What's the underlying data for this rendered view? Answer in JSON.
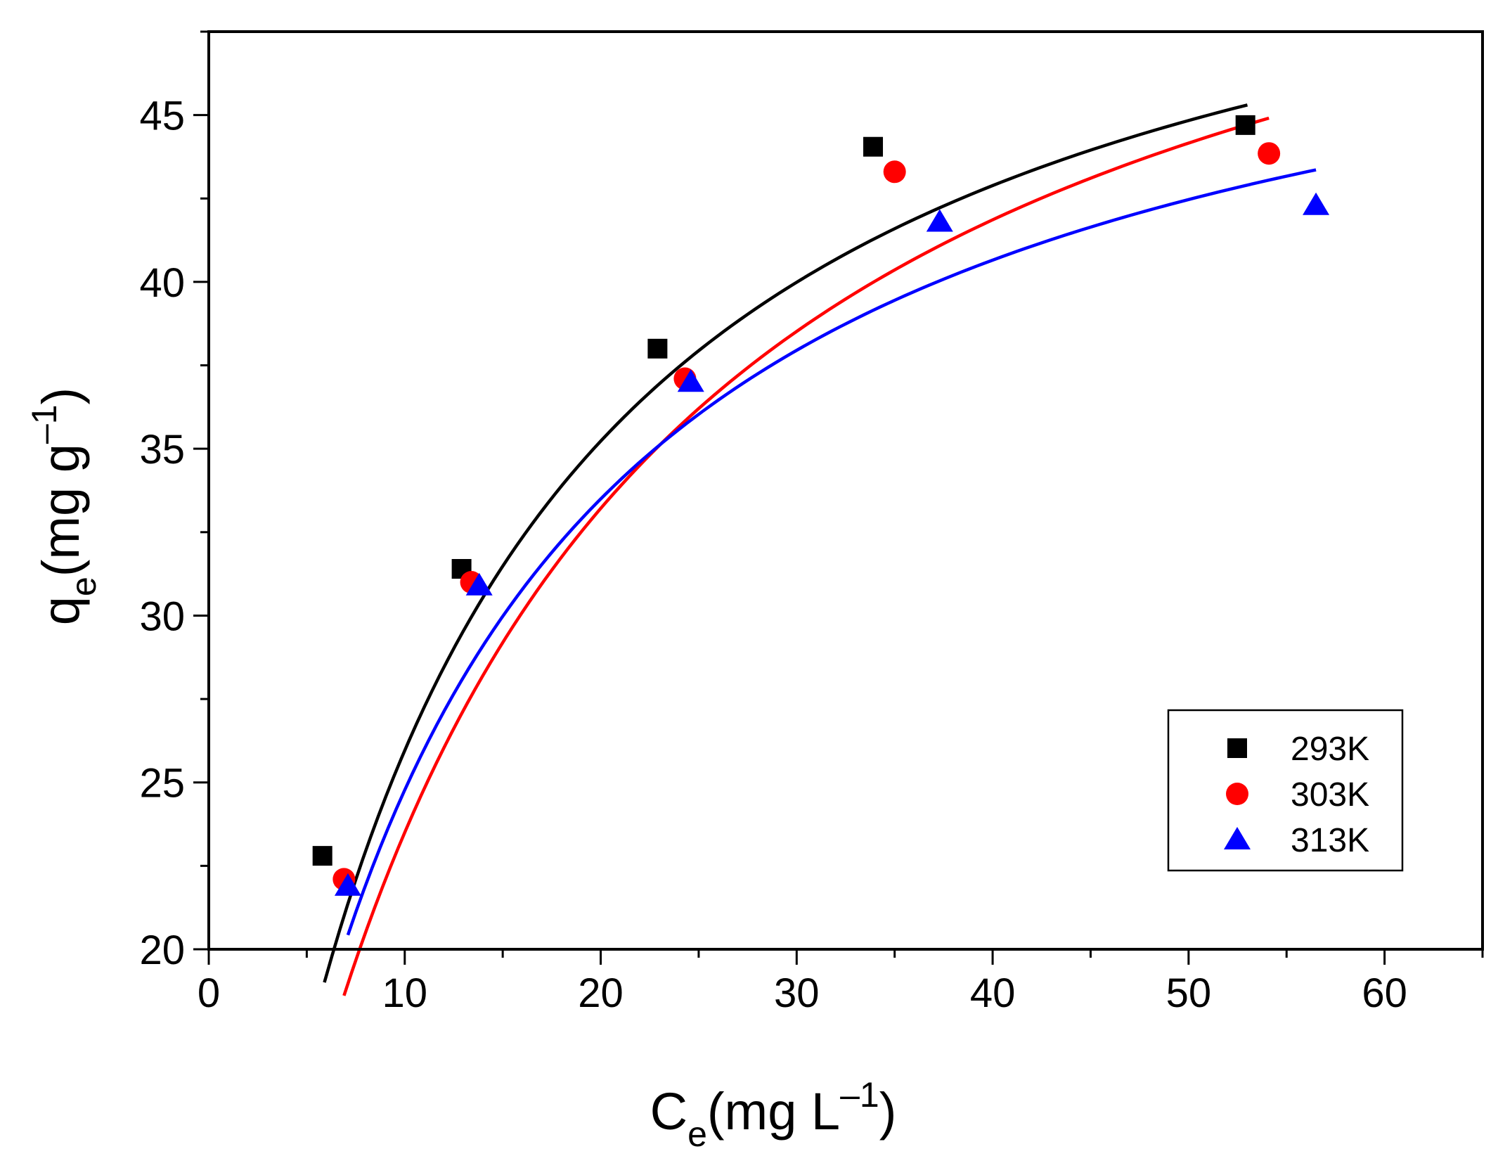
{
  "chart_data": {
    "type": "scatter",
    "title": "",
    "xlabel": {
      "main": "C",
      "sub": "e",
      "unit": "(mg L",
      "sup": "–1",
      "close": ")"
    },
    "ylabel": {
      "main": "q",
      "sub": "e",
      "unit": "(mg g",
      "sup": "–1",
      "close": ")"
    },
    "xlim": [
      0,
      65
    ],
    "ylim": [
      20,
      47.5
    ],
    "xticks": [
      0,
      10,
      20,
      30,
      40,
      50,
      60
    ],
    "xtick_labels": [
      "0",
      "10",
      "20",
      "30",
      "40",
      "50",
      "60"
    ],
    "yticks": [
      20,
      25,
      30,
      35,
      40,
      45
    ],
    "ytick_labels": [
      "20",
      "25",
      "30",
      "35",
      "40",
      "45"
    ],
    "grid": false,
    "legend_position": "bottom-right",
    "series": [
      {
        "name": "293K",
        "marker": "square",
        "color": "#000000",
        "points": [
          [
            5.8,
            22.8
          ],
          [
            12.9,
            31.4
          ],
          [
            22.9,
            38.0
          ],
          [
            33.9,
            44.05
          ],
          [
            52.9,
            44.7
          ]
        ],
        "fit": {
          "model": "langmuir",
          "qmax": 54.8,
          "KL": 0.09,
          "x_range": [
            5.9,
            53.0
          ]
        }
      },
      {
        "name": "303K",
        "marker": "circle",
        "color": "#ff0000",
        "points": [
          [
            6.9,
            22.1
          ],
          [
            13.4,
            31.0
          ],
          [
            24.3,
            37.1
          ],
          [
            35.0,
            43.3
          ],
          [
            54.1,
            43.85
          ]
        ],
        "fit": {
          "model": "langmuir",
          "qmax": 56.6,
          "KL": 0.071,
          "x_range": [
            6.9,
            54.1
          ]
        }
      },
      {
        "name": "313K",
        "marker": "triangle",
        "color": "#0000ff",
        "points": [
          [
            7.1,
            21.9
          ],
          [
            13.8,
            30.9
          ],
          [
            24.6,
            37.0
          ],
          [
            37.3,
            41.8
          ],
          [
            56.5,
            42.3
          ]
        ],
        "fit": {
          "model": "langmuir",
          "qmax": 51.7,
          "KL": 0.092,
          "x_range": [
            7.1,
            56.5
          ]
        }
      }
    ]
  }
}
